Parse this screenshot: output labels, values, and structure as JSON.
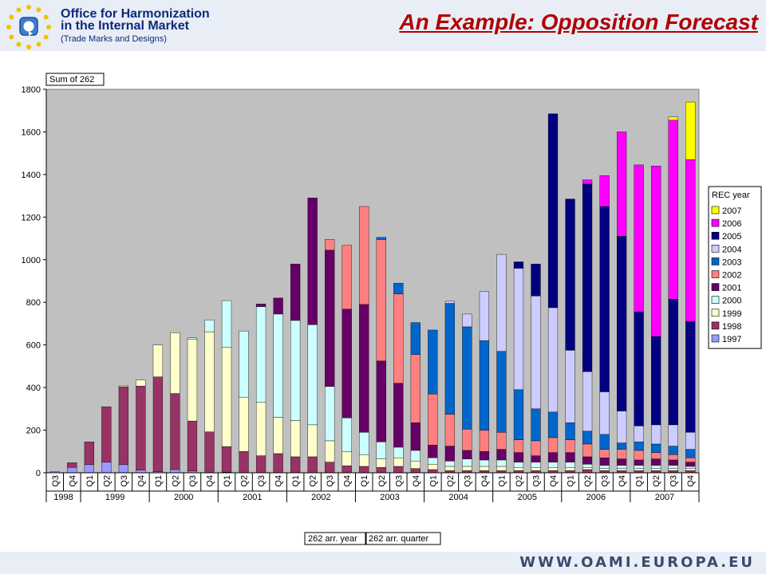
{
  "header": {
    "org_line1": "Office for Harmonization",
    "org_line2": "in the Internal Market",
    "org_line3": "(Trade Marks and Designs)",
    "title": "An Example: Opposition Forecast",
    "logo_icon": "eu-stars-logo-icon"
  },
  "footer": {
    "url": "WWW.OAMI.EUROPA.EU"
  },
  "chart_data": {
    "type": "bar",
    "stacked": true,
    "title": "",
    "data_label": "Sum of 262",
    "legend_title": "REC year",
    "legend_position": "right",
    "field_buttons": [
      "262 arr. year",
      "262 arr. quarter"
    ],
    "ylim": [
      0,
      1800
    ],
    "yticks": [
      0,
      200,
      400,
      600,
      800,
      1000,
      1200,
      1400,
      1600,
      1800
    ],
    "gridlines": false,
    "plot_background": "#c0c0c0",
    "years": [
      {
        "label": "1998",
        "quarters": [
          "Q3",
          "Q4"
        ]
      },
      {
        "label": "1999",
        "quarters": [
          "Q1",
          "Q2",
          "Q3",
          "Q4"
        ]
      },
      {
        "label": "2000",
        "quarters": [
          "Q1",
          "Q2",
          "Q3",
          "Q4"
        ]
      },
      {
        "label": "2001",
        "quarters": [
          "Q1",
          "Q2",
          "Q3",
          "Q4"
        ]
      },
      {
        "label": "2002",
        "quarters": [
          "Q1",
          "Q2",
          "Q3",
          "Q4"
        ]
      },
      {
        "label": "2003",
        "quarters": [
          "Q1",
          "Q2",
          "Q3",
          "Q4"
        ]
      },
      {
        "label": "2004",
        "quarters": [
          "Q1",
          "Q2",
          "Q3",
          "Q4"
        ]
      },
      {
        "label": "2005",
        "quarters": [
          "Q1",
          "Q2",
          "Q3",
          "Q4"
        ]
      },
      {
        "label": "2006",
        "quarters": [
          "Q1",
          "Q2",
          "Q3",
          "Q4"
        ]
      },
      {
        "label": "2007",
        "quarters": [
          "Q1",
          "Q2",
          "Q3",
          "Q4"
        ]
      }
    ],
    "series": [
      {
        "name": "1997",
        "color": "#9999ff",
        "values": [
          5,
          25,
          38,
          50,
          38,
          12,
          5,
          15,
          8,
          0,
          3,
          0,
          0,
          0,
          0,
          0,
          0,
          0,
          0,
          0,
          0,
          0,
          0,
          0,
          0,
          0,
          0,
          0,
          0,
          0,
          0,
          0,
          0,
          0,
          0,
          0,
          0,
          0
        ]
      },
      {
        "name": "1998",
        "color": "#993366",
        "values": [
          0,
          22,
          107,
          260,
          365,
          395,
          445,
          357,
          235,
          192,
          120,
          100,
          80,
          90,
          75,
          75,
          50,
          33,
          30,
          25,
          30,
          20,
          15,
          10,
          10,
          10,
          10,
          10,
          10,
          10,
          10,
          15,
          10,
          10,
          10,
          10,
          10,
          10
        ]
      },
      {
        "name": "1999",
        "color": "#ffffcc",
        "values": [
          0,
          0,
          0,
          0,
          5,
          28,
          150,
          285,
          385,
          470,
          465,
          255,
          250,
          170,
          170,
          150,
          100,
          65,
          55,
          40,
          40,
          35,
          25,
          20,
          20,
          20,
          20,
          15,
          15,
          15,
          15,
          10,
          10,
          10,
          10,
          10,
          10,
          10
        ]
      },
      {
        "name": "2000",
        "color": "#ccffff",
        "values": [
          0,
          0,
          0,
          0,
          0,
          0,
          0,
          0,
          5,
          55,
          220,
          310,
          450,
          485,
          470,
          470,
          255,
          160,
          105,
          80,
          50,
          50,
          30,
          25,
          35,
          30,
          30,
          25,
          25,
          25,
          25,
          15,
          15,
          15,
          15,
          15,
          15,
          10
        ]
      },
      {
        "name": "2001",
        "color": "#660066",
        "values": [
          0,
          0,
          0,
          0,
          0,
          0,
          0,
          0,
          0,
          0,
          0,
          0,
          12,
          75,
          265,
          595,
          640,
          510,
          600,
          380,
          300,
          130,
          60,
          70,
          40,
          40,
          50,
          45,
          30,
          45,
          45,
          35,
          35,
          30,
          25,
          30,
          25,
          20
        ]
      },
      {
        "name": "2002",
        "color": "#ff8080",
        "values": [
          0,
          0,
          0,
          0,
          0,
          0,
          0,
          0,
          0,
          0,
          0,
          0,
          0,
          0,
          0,
          0,
          50,
          300,
          460,
          570,
          420,
          320,
          240,
          150,
          100,
          100,
          80,
          60,
          70,
          70,
          60,
          60,
          40,
          45,
          45,
          30,
          25,
          20
        ]
      },
      {
        "name": "2003",
        "color": "#0066cc",
        "values": [
          0,
          0,
          0,
          0,
          0,
          0,
          0,
          0,
          0,
          0,
          0,
          0,
          0,
          0,
          0,
          0,
          0,
          0,
          0,
          10,
          50,
          150,
          300,
          520,
          480,
          420,
          380,
          235,
          150,
          120,
          80,
          60,
          70,
          30,
          40,
          40,
          40,
          40
        ]
      },
      {
        "name": "2004",
        "color": "#ccccff",
        "values": [
          0,
          0,
          0,
          0,
          0,
          0,
          0,
          0,
          0,
          0,
          0,
          0,
          0,
          0,
          0,
          0,
          0,
          0,
          0,
          0,
          0,
          0,
          0,
          10,
          60,
          230,
          455,
          570,
          530,
          490,
          340,
          280,
          200,
          150,
          75,
          90,
          100,
          80
        ]
      },
      {
        "name": "2005",
        "color": "#000080",
        "values": [
          0,
          0,
          0,
          0,
          0,
          0,
          0,
          0,
          0,
          0,
          0,
          0,
          0,
          0,
          0,
          0,
          0,
          0,
          0,
          0,
          0,
          0,
          0,
          0,
          0,
          0,
          0,
          30,
          150,
          910,
          710,
          880,
          870,
          820,
          535,
          415,
          590,
          520
        ]
      },
      {
        "name": "2006",
        "color": "#ff00ff",
        "values": [
          0,
          0,
          0,
          0,
          0,
          0,
          0,
          0,
          0,
          0,
          0,
          0,
          0,
          0,
          0,
          0,
          0,
          0,
          0,
          0,
          0,
          0,
          0,
          0,
          0,
          0,
          0,
          0,
          0,
          0,
          0,
          20,
          145,
          490,
          690,
          800,
          840,
          760
        ]
      },
      {
        "name": "2007",
        "color": "#ffff00",
        "values": [
          0,
          0,
          0,
          0,
          0,
          0,
          0,
          0,
          0,
          0,
          0,
          0,
          0,
          0,
          0,
          0,
          0,
          0,
          0,
          0,
          0,
          0,
          0,
          0,
          0,
          0,
          0,
          0,
          0,
          0,
          0,
          0,
          0,
          0,
          0,
          0,
          15,
          270
        ]
      }
    ]
  }
}
